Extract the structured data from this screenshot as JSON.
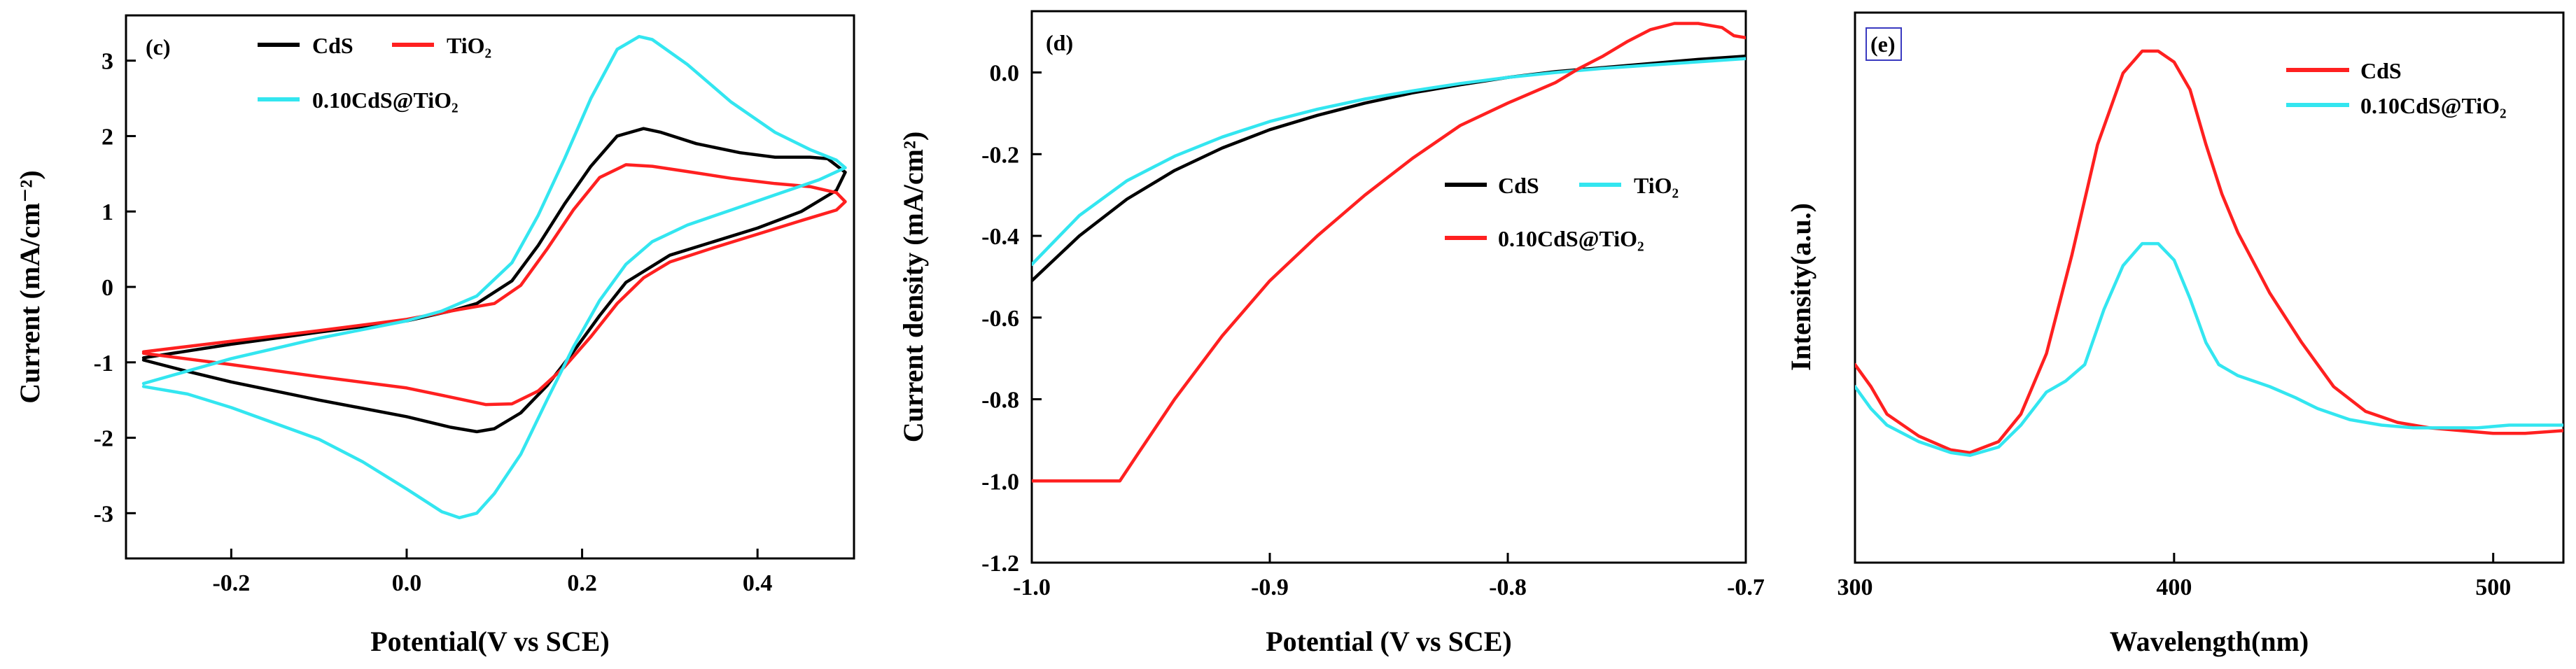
{
  "colors": {
    "black": "#000000",
    "red": "#ff2020",
    "cyan": "#33e6f0"
  },
  "chart_data": [
    {
      "panel": "(c)",
      "type": "line",
      "xlabel": "Potential(V vs SCE)",
      "ylabel": "Current (mA/cm⁻²)",
      "xlim": [
        -0.32,
        0.51
      ],
      "ylim": [
        -3.6,
        3.6
      ],
      "xticks": [
        -0.2,
        0.0,
        0.2,
        0.4
      ],
      "yticks": [
        -3,
        -2,
        -1,
        0,
        1,
        2,
        3
      ],
      "xtick_labels": [
        "-0.2",
        "0.0",
        "0.2",
        "0.4"
      ],
      "ytick_labels": [
        "-3",
        "-2",
        "-1",
        "0",
        "1",
        "2",
        "3"
      ],
      "legend": [
        {
          "label": "CdS",
          "color": "#000000"
        },
        {
          "label": "TiO₂",
          "color": "#ff2020"
        },
        {
          "label": "0.10CdS@TiO₂",
          "color": "#33e6f0"
        }
      ],
      "series": [
        {
          "name": "CdS",
          "color": "#000000",
          "points": [
            [
              -0.3,
              -0.97
            ],
            [
              -0.25,
              -1.12
            ],
            [
              -0.2,
              -1.26
            ],
            [
              -0.1,
              -1.5
            ],
            [
              0.0,
              -1.72
            ],
            [
              0.05,
              -1.86
            ],
            [
              0.08,
              -1.92
            ],
            [
              0.1,
              -1.88
            ],
            [
              0.13,
              -1.67
            ],
            [
              0.16,
              -1.31
            ],
            [
              0.19,
              -0.86
            ],
            [
              0.22,
              -0.38
            ],
            [
              0.25,
              0.06
            ],
            [
              0.3,
              0.42
            ],
            [
              0.35,
              0.6
            ],
            [
              0.4,
              0.78
            ],
            [
              0.45,
              1.0
            ],
            [
              0.49,
              1.28
            ],
            [
              0.5,
              1.52
            ],
            [
              0.48,
              1.7
            ],
            [
              0.46,
              1.72
            ],
            [
              0.42,
              1.72
            ],
            [
              0.38,
              1.78
            ],
            [
              0.33,
              1.9
            ],
            [
              0.29,
              2.05
            ],
            [
              0.27,
              2.1
            ],
            [
              0.24,
              2.0
            ],
            [
              0.21,
              1.6
            ],
            [
              0.18,
              1.1
            ],
            [
              0.15,
              0.55
            ],
            [
              0.12,
              0.08
            ],
            [
              0.08,
              -0.22
            ],
            [
              0.05,
              -0.32
            ],
            [
              0.0,
              -0.45
            ],
            [
              -0.1,
              -0.6
            ],
            [
              -0.2,
              -0.76
            ],
            [
              -0.3,
              -0.94
            ]
          ]
        },
        {
          "name": "TiO₂",
          "color": "#ff2020",
          "points": [
            [
              -0.3,
              -0.88
            ],
            [
              -0.2,
              -1.03
            ],
            [
              -0.1,
              -1.19
            ],
            [
              0.0,
              -1.34
            ],
            [
              0.05,
              -1.46
            ],
            [
              0.09,
              -1.56
            ],
            [
              0.12,
              -1.55
            ],
            [
              0.15,
              -1.38
            ],
            [
              0.18,
              -1.06
            ],
            [
              0.21,
              -0.66
            ],
            [
              0.24,
              -0.22
            ],
            [
              0.27,
              0.12
            ],
            [
              0.3,
              0.33
            ],
            [
              0.35,
              0.52
            ],
            [
              0.4,
              0.7
            ],
            [
              0.45,
              0.88
            ],
            [
              0.49,
              1.02
            ],
            [
              0.5,
              1.13
            ],
            [
              0.49,
              1.25
            ],
            [
              0.46,
              1.33
            ],
            [
              0.42,
              1.37
            ],
            [
              0.37,
              1.44
            ],
            [
              0.32,
              1.53
            ],
            [
              0.28,
              1.6
            ],
            [
              0.25,
              1.62
            ],
            [
              0.22,
              1.45
            ],
            [
              0.19,
              1.02
            ],
            [
              0.16,
              0.5
            ],
            [
              0.13,
              0.02
            ],
            [
              0.1,
              -0.22
            ],
            [
              0.06,
              -0.3
            ],
            [
              0.0,
              -0.43
            ],
            [
              -0.1,
              -0.58
            ],
            [
              -0.2,
              -0.72
            ],
            [
              -0.3,
              -0.86
            ]
          ]
        },
        {
          "name": "0.10CdS@TiO₂",
          "color": "#33e6f0",
          "points": [
            [
              -0.3,
              -1.32
            ],
            [
              -0.25,
              -1.42
            ],
            [
              -0.2,
              -1.6
            ],
            [
              -0.1,
              -2.02
            ],
            [
              -0.05,
              -2.32
            ],
            [
              0.0,
              -2.68
            ],
            [
              0.04,
              -2.98
            ],
            [
              0.06,
              -3.06
            ],
            [
              0.08,
              -3.0
            ],
            [
              0.1,
              -2.74
            ],
            [
              0.13,
              -2.22
            ],
            [
              0.16,
              -1.5
            ],
            [
              0.19,
              -0.8
            ],
            [
              0.22,
              -0.18
            ],
            [
              0.25,
              0.3
            ],
            [
              0.28,
              0.6
            ],
            [
              0.32,
              0.82
            ],
            [
              0.37,
              1.02
            ],
            [
              0.42,
              1.22
            ],
            [
              0.47,
              1.42
            ],
            [
              0.5,
              1.58
            ],
            [
              0.49,
              1.68
            ],
            [
              0.46,
              1.82
            ],
            [
              0.42,
              2.05
            ],
            [
              0.37,
              2.45
            ],
            [
              0.32,
              2.95
            ],
            [
              0.28,
              3.28
            ],
            [
              0.265,
              3.32
            ],
            [
              0.24,
              3.15
            ],
            [
              0.21,
              2.5
            ],
            [
              0.18,
              1.7
            ],
            [
              0.15,
              0.95
            ],
            [
              0.12,
              0.32
            ],
            [
              0.08,
              -0.12
            ],
            [
              0.04,
              -0.32
            ],
            [
              0.0,
              -0.45
            ],
            [
              -0.1,
              -0.68
            ],
            [
              -0.2,
              -0.95
            ],
            [
              -0.3,
              -1.28
            ]
          ]
        }
      ]
    },
    {
      "panel": "(d)",
      "type": "line",
      "xlabel": "Potential (V vs SCE)",
      "ylabel": "Current density (mA/cm²)",
      "xlim": [
        -1.0,
        -0.7
      ],
      "ylim": [
        -1.2,
        0.15
      ],
      "xticks": [
        -1.0,
        -0.9,
        -0.8,
        -0.7
      ],
      "yticks": [
        -1.2,
        -1.0,
        -0.8,
        -0.6,
        -0.4,
        -0.2,
        0.0
      ],
      "xtick_labels": [
        "-1.0",
        "-0.9",
        "-0.8",
        "-0.7"
      ],
      "ytick_labels": [
        "-1.2",
        "-1.0",
        "-0.8",
        "-0.6",
        "-0.4",
        "-0.2",
        "0.0"
      ],
      "legend": [
        {
          "label": "CdS",
          "color": "#000000"
        },
        {
          "label": "TiO₂",
          "color": "#33e6f0"
        },
        {
          "label": "0.10CdS@TiO₂",
          "color": "#ff2020"
        }
      ],
      "series": [
        {
          "name": "CdS",
          "color": "#000000",
          "points": [
            [
              -1.0,
              -0.51
            ],
            [
              -0.98,
              -0.4
            ],
            [
              -0.96,
              -0.31
            ],
            [
              -0.94,
              -0.24
            ],
            [
              -0.92,
              -0.185
            ],
            [
              -0.9,
              -0.14
            ],
            [
              -0.88,
              -0.105
            ],
            [
              -0.86,
              -0.075
            ],
            [
              -0.84,
              -0.05
            ],
            [
              -0.82,
              -0.03
            ],
            [
              -0.8,
              -0.012
            ],
            [
              -0.78,
              0.002
            ],
            [
              -0.76,
              0.012
            ],
            [
              -0.74,
              0.022
            ],
            [
              -0.72,
              0.032
            ],
            [
              -0.7,
              0.04
            ]
          ]
        },
        {
          "name": "TiO₂",
          "color": "#33e6f0",
          "points": [
            [
              -1.0,
              -0.47
            ],
            [
              -0.98,
              -0.35
            ],
            [
              -0.96,
              -0.265
            ],
            [
              -0.94,
              -0.205
            ],
            [
              -0.92,
              -0.158
            ],
            [
              -0.9,
              -0.12
            ],
            [
              -0.88,
              -0.09
            ],
            [
              -0.86,
              -0.065
            ],
            [
              -0.84,
              -0.045
            ],
            [
              -0.82,
              -0.027
            ],
            [
              -0.8,
              -0.012
            ],
            [
              -0.78,
              0.0
            ],
            [
              -0.76,
              0.01
            ],
            [
              -0.74,
              0.018
            ],
            [
              -0.72,
              0.026
            ],
            [
              -0.7,
              0.034
            ]
          ]
        },
        {
          "name": "0.10CdS@TiO₂",
          "color": "#ff2020",
          "points": [
            [
              -1.0,
              -1.0
            ],
            [
              -0.963,
              -1.0
            ],
            [
              -0.955,
              -0.93
            ],
            [
              -0.94,
              -0.8
            ],
            [
              -0.92,
              -0.645
            ],
            [
              -0.9,
              -0.51
            ],
            [
              -0.88,
              -0.4
            ],
            [
              -0.86,
              -0.3
            ],
            [
              -0.84,
              -0.21
            ],
            [
              -0.82,
              -0.13
            ],
            [
              -0.8,
              -0.075
            ],
            [
              -0.78,
              -0.025
            ],
            [
              -0.77,
              0.01
            ],
            [
              -0.76,
              0.04
            ],
            [
              -0.75,
              0.075
            ],
            [
              -0.74,
              0.105
            ],
            [
              -0.73,
              0.12
            ],
            [
              -0.72,
              0.12
            ],
            [
              -0.71,
              0.11
            ],
            [
              -0.705,
              0.09
            ],
            [
              -0.7,
              0.085
            ]
          ]
        }
      ]
    },
    {
      "panel": "(e)",
      "type": "line",
      "xlabel": "Wavelength(nm)",
      "ylabel": "Intensity(a.u.)",
      "xlim": [
        300,
        522
      ],
      "ylim": [
        0,
        100
      ],
      "xticks": [
        300,
        400,
        500
      ],
      "yticks": [],
      "xtick_labels": [
        "300",
        "400",
        "500"
      ],
      "ytick_labels": [],
      "legend": [
        {
          "label": "CdS",
          "color": "#ff2020"
        },
        {
          "label": "0.10CdS@TiO₂",
          "color": "#33e6f0"
        }
      ],
      "series": [
        {
          "name": "CdS",
          "color": "#ff2020",
          "points": [
            [
              300,
              36
            ],
            [
              305,
              32
            ],
            [
              310,
              27
            ],
            [
              320,
              23
            ],
            [
              330,
              20.5
            ],
            [
              336,
              20
            ],
            [
              345,
              22
            ],
            [
              352,
              27
            ],
            [
              360,
              38
            ],
            [
              368,
              56
            ],
            [
              376,
              76
            ],
            [
              384,
              89
            ],
            [
              390,
              93
            ],
            [
              395,
              93
            ],
            [
              400,
              91
            ],
            [
              405,
              86
            ],
            [
              410,
              76
            ],
            [
              415,
              67
            ],
            [
              420,
              60
            ],
            [
              430,
              49
            ],
            [
              440,
              40
            ],
            [
              450,
              32
            ],
            [
              460,
              27.5
            ],
            [
              470,
              25.5
            ],
            [
              480,
              24.5
            ],
            [
              490,
              24
            ],
            [
              500,
              23.5
            ],
            [
              510,
              23.5
            ],
            [
              522,
              24
            ]
          ]
        },
        {
          "name": "0.10CdS@TiO₂",
          "color": "#33e6f0",
          "points": [
            [
              300,
              32
            ],
            [
              305,
              28
            ],
            [
              310,
              25
            ],
            [
              320,
              22
            ],
            [
              330,
              20
            ],
            [
              336,
              19.5
            ],
            [
              345,
              21
            ],
            [
              352,
              25
            ],
            [
              360,
              31
            ],
            [
              366,
              33
            ],
            [
              372,
              36
            ],
            [
              378,
              46
            ],
            [
              384,
              54
            ],
            [
              390,
              58
            ],
            [
              395,
              58
            ],
            [
              400,
              55
            ],
            [
              405,
              48
            ],
            [
              410,
              40
            ],
            [
              414,
              36
            ],
            [
              420,
              34
            ],
            [
              430,
              32
            ],
            [
              438,
              30
            ],
            [
              445,
              28
            ],
            [
              455,
              26
            ],
            [
              465,
              25
            ],
            [
              475,
              24.5
            ],
            [
              485,
              24.5
            ],
            [
              495,
              24.5
            ],
            [
              505,
              25
            ],
            [
              515,
              25
            ],
            [
              522,
              25
            ]
          ]
        }
      ]
    }
  ]
}
